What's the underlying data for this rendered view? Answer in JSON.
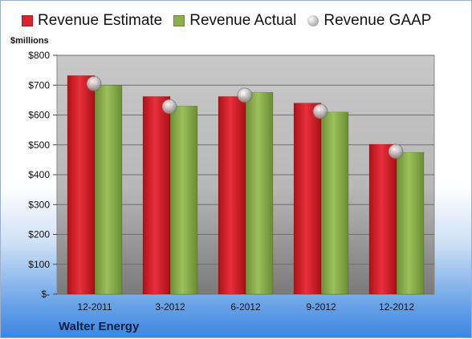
{
  "chart_data": {
    "type": "bar",
    "ylabel": "$millions",
    "categories": [
      "12-2011",
      "3-2012",
      "6-2012",
      "9-2012",
      "12-2012"
    ],
    "series": [
      {
        "name": "Revenue Estimate",
        "type": "bar",
        "color": "#d9232e",
        "values": [
          732,
          662,
          662,
          640,
          502
        ]
      },
      {
        "name": "Revenue Actual",
        "type": "bar",
        "color": "#8cb04d",
        "values": [
          700,
          630,
          676,
          610,
          475
        ]
      },
      {
        "name": "Revenue GAAP",
        "type": "marker",
        "color": "#c9c9c9",
        "values": [
          705,
          628,
          666,
          612,
          478
        ]
      }
    ],
    "ylim": [
      0,
      800
    ],
    "yticks": [
      0,
      100,
      200,
      300,
      400,
      500,
      600,
      700,
      800
    ],
    "ytick_labels": [
      "$-",
      "$100",
      "$200",
      "$300",
      "$400",
      "$500",
      "$600",
      "$700",
      "$800"
    ],
    "grid": true,
    "legend_position": "top"
  },
  "company": "Walter Energy"
}
